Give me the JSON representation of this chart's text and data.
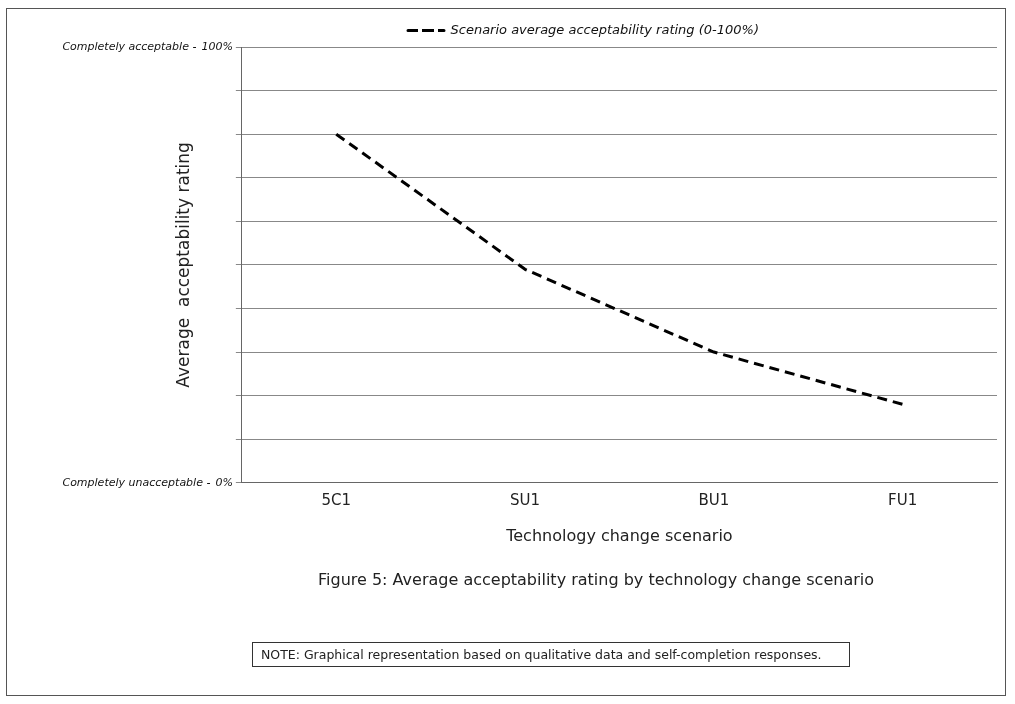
{
  "chart_data": {
    "type": "line",
    "title": "Figure 5: Average acceptability rating by technology change scenario",
    "xlabel": "Technology change scenario",
    "ylabel": "Average  acceptability rating",
    "categories": [
      "5C1",
      "SU1",
      "BU1",
      "FU1"
    ],
    "series": [
      {
        "name": "Scenario average acceptability rating (0-100%)",
        "color": "#000000",
        "values": [
          80,
          49,
          30,
          18
        ],
        "line_style": "dashed"
      }
    ],
    "ylim": [
      0,
      100
    ],
    "yticks": [
      {
        "value": 0,
        "label": "0%"
      },
      {
        "value": 10,
        "label": null
      },
      {
        "value": 20,
        "label": null
      },
      {
        "value": 30,
        "label": null
      },
      {
        "value": 40,
        "label": null
      },
      {
        "value": 50,
        "label": null
      },
      {
        "value": 60,
        "label": null
      },
      {
        "value": 70,
        "label": null
      },
      {
        "value": 80,
        "label": null
      },
      {
        "value": 90,
        "label": null
      },
      {
        "value": 100,
        "label": "100%"
      }
    ],
    "grid": "y",
    "legend": "top",
    "marker": "none",
    "annotations": [
      "Completely acceptable -",
      "Completely unacceptable -",
      "NOTE: Graphical representation based on qualitative data and self-completion responses."
    ]
  }
}
